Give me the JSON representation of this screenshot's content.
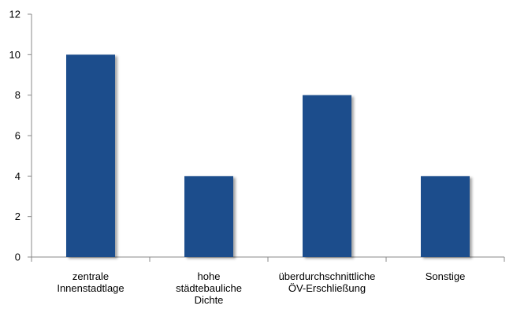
{
  "chart_data": {
    "type": "bar",
    "title": "",
    "xlabel": "",
    "ylabel": "",
    "categories": [
      [
        "zentrale",
        "Innenstadtlage"
      ],
      [
        "hohe",
        "städtebauliche",
        "Dichte"
      ],
      [
        "überdurchschnittliche",
        "ÖV-Erschließung"
      ],
      [
        "Sonstige"
      ]
    ],
    "values": [
      10,
      4,
      8,
      4
    ],
    "ylim": [
      0,
      12
    ],
    "yticks": [
      "0",
      "2",
      "4",
      "6",
      "8",
      "10",
      "12"
    ],
    "grid": false,
    "legend": "none",
    "colors": {
      "bar": "#1f4e8c",
      "bar_shadow": "#b0b0b0",
      "axis": "#888888"
    }
  }
}
